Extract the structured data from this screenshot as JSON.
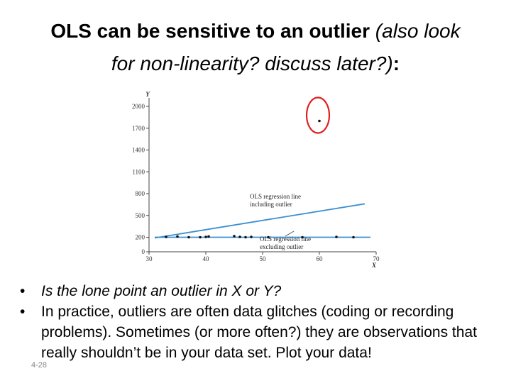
{
  "title": {
    "line1_bold": "OLS can be sensitive to an outlier",
    "line1_italic": "(also look",
    "line2_italic": "for non-linearity? discuss later?)",
    "line2_colon": ":"
  },
  "chart_data": {
    "type": "scatter",
    "xlabel": "X",
    "ylabel": "Y",
    "xlim": [
      30,
      70
    ],
    "ylim": [
      0,
      2000
    ],
    "x_ticks": [
      "30",
      "40",
      "50",
      "60",
      "70"
    ],
    "y_ticks": [
      "0",
      "200",
      "500",
      "800",
      "1100",
      "1400",
      "1700",
      "2000"
    ],
    "points": [
      {
        "x": 33,
        "y": 205
      },
      {
        "x": 35,
        "y": 210
      },
      {
        "x": 37,
        "y": 200
      },
      {
        "x": 39,
        "y": 200
      },
      {
        "x": 40,
        "y": 205
      },
      {
        "x": 40.5,
        "y": 210
      },
      {
        "x": 45,
        "y": 215
      },
      {
        "x": 46,
        "y": 205
      },
      {
        "x": 47,
        "y": 200
      },
      {
        "x": 48,
        "y": 205
      },
      {
        "x": 51,
        "y": 200
      },
      {
        "x": 57,
        "y": 200
      },
      {
        "x": 63,
        "y": 205
      },
      {
        "x": 66,
        "y": 200
      },
      {
        "x": 60,
        "y": 1800
      }
    ],
    "lines": [
      {
        "label": "OLS regression line including outlier",
        "x": [
          31,
          68
        ],
        "y": [
          190,
          660
        ],
        "color": "#3a8fd0"
      },
      {
        "label": "OLS regression line excluding outlier",
        "x": [
          31,
          69
        ],
        "y": [
          200,
          200
        ],
        "color": "#3a8fd0"
      }
    ],
    "annotations": {
      "including_outlier": [
        "OLS regression line",
        "including outlier"
      ],
      "excluding_outlier": [
        "OLS regression line",
        "excluding outlier"
      ]
    },
    "outlier_circle_color": "#e02020"
  },
  "bullets": [
    {
      "marker": "•",
      "text": "Is the lone point an outlier in X or Y?"
    },
    {
      "marker": "•",
      "text": "In practice, outliers are often data glitches (coding or recording problems).  Sometimes (or more often?) they are observations that really shouldn’t be in your data set.  Plot your data!"
    }
  ],
  "slide_number": "4-28"
}
